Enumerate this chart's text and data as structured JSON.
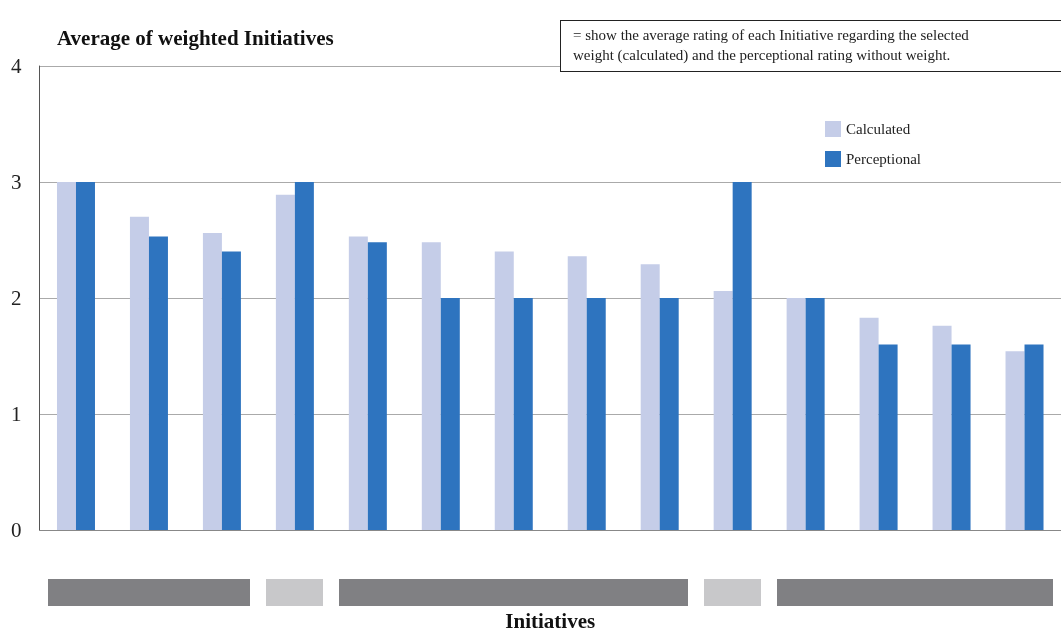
{
  "chart_data": {
    "type": "bar",
    "title": "Average of weighted Initiatives",
    "xlabel": "Initiatives",
    "annotations": [
      "= show the average rating of each Initiative regarding the selected\nweight (calculated) and the perceptional rating without weight."
    ],
    "categories": [
      null,
      null,
      null,
      null,
      null,
      null,
      null,
      null,
      null,
      null,
      null,
      null,
      null,
      null
    ],
    "series": [
      {
        "name": "Calculated",
        "color": "#c5cde8",
        "values": [
          3.0,
          2.7,
          2.56,
          2.89,
          2.53,
          2.48,
          2.4,
          2.36,
          2.29,
          2.06,
          2.0,
          1.83,
          1.76,
          1.54
        ]
      },
      {
        "name": "Perceptional",
        "color": "#2e74bf",
        "values": [
          3.0,
          2.53,
          2.4,
          3.0,
          2.48,
          2.0,
          2.0,
          2.0,
          2.0,
          3.0,
          2.0,
          1.6,
          1.6,
          1.6
        ]
      }
    ],
    "ylim": [
      0,
      4
    ],
    "yticks": [
      0,
      1,
      2,
      3,
      4
    ],
    "grid": "y",
    "legend": "top right"
  }
}
